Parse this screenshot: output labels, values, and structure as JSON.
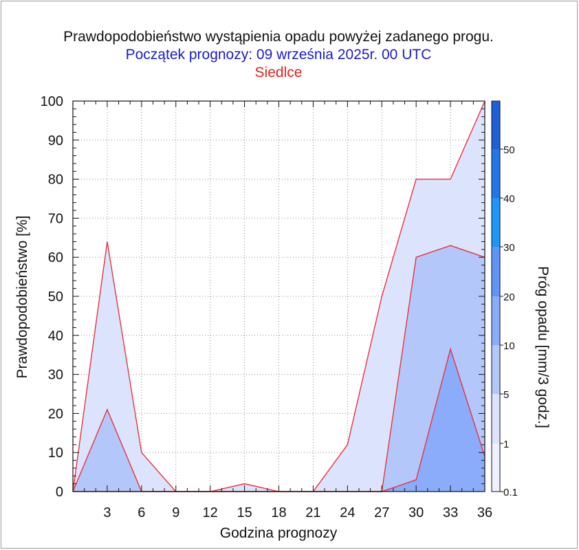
{
  "chart_data": {
    "type": "area",
    "title": "Prawdopodobieństwo wystąpienia opadu powyżej zadanego progu.",
    "subtitle": "Początek prognozy: 09 września 2025r. 00 UTC",
    "location": "Siedlce",
    "xlabel": "Godzina prognozy",
    "ylabel": "Prawdopodobieństwo [%]",
    "colorbar_label": "Próg opadu [mm/3 godz.]",
    "xlim": [
      0,
      36
    ],
    "ylim": [
      0,
      100
    ],
    "xticks": [
      3,
      6,
      9,
      12,
      15,
      18,
      21,
      24,
      27,
      30,
      33,
      36
    ],
    "yticks": [
      0,
      10,
      20,
      30,
      40,
      50,
      60,
      70,
      80,
      90,
      100
    ],
    "grid": true,
    "x": [
      0,
      3,
      6,
      9,
      12,
      15,
      18,
      21,
      24,
      27,
      30,
      33,
      36
    ],
    "series": [
      {
        "threshold": "0.1",
        "color": "#dce3fc",
        "values": [
          0,
          64,
          10,
          0,
          0,
          2,
          0,
          0,
          12,
          50,
          80,
          80,
          100
        ]
      },
      {
        "threshold": "1",
        "color": "#b4c7fa",
        "values": [
          0,
          21,
          0,
          0,
          0,
          0,
          0,
          0,
          0,
          0,
          60,
          63,
          60
        ]
      },
      {
        "threshold": "5",
        "color": "#8aacfa",
        "values": [
          0,
          0,
          0,
          0,
          0,
          0,
          0,
          0,
          0,
          0,
          3,
          36.5,
          9
        ]
      }
    ],
    "line_color": "#e8323c",
    "colorbar": {
      "tick_labels": [
        "0.1",
        "1",
        "5",
        "10",
        "20",
        "30",
        "40",
        "50"
      ],
      "colors": [
        "#eef0fe",
        "#dce3fc",
        "#b4c7fa",
        "#8aacfa",
        "#5f95f6",
        "#1e96f5",
        "#2277e8",
        "#1c5fd6",
        "#164ec4",
        "#0f3ca8"
      ]
    }
  }
}
